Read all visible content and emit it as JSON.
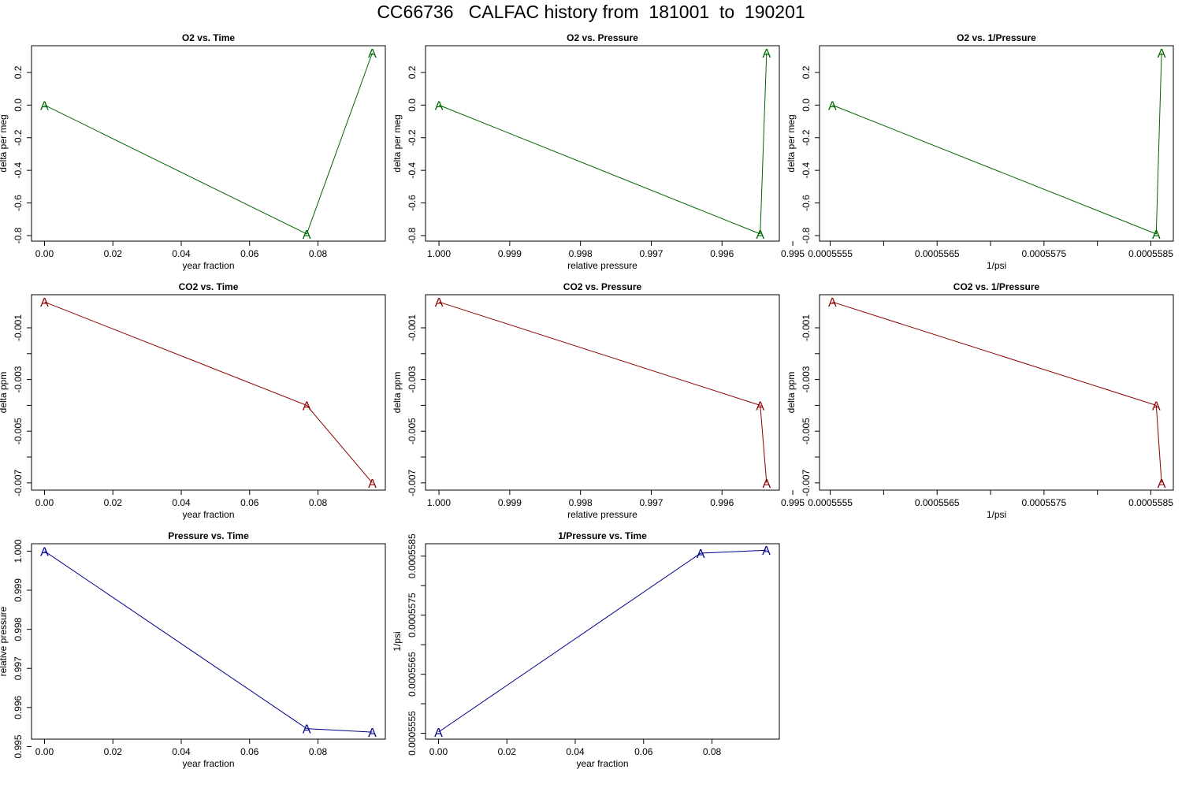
{
  "figure": {
    "title": "CC66736   CALFAC history from  181001  to  190201"
  },
  "colors": {
    "o2": "#006400",
    "co2": "#8b0000",
    "pressure": "#00008b",
    "axis": "#000000"
  },
  "chart_data": [
    {
      "type": "line",
      "title": "O2 vs. Time",
      "xlabel": "year fraction",
      "ylabel": "delta per meg",
      "color_key": "o2",
      "marker": "A",
      "x": [
        0.0,
        0.0767,
        0.0959
      ],
      "y": [
        0.0,
        -0.79,
        0.32
      ],
      "xlim": [
        -0.0038,
        0.0997
      ],
      "ylim": [
        -0.834,
        0.364
      ],
      "xticks": [
        0.0,
        0.02,
        0.04,
        0.06,
        0.08
      ],
      "xtick_labels": [
        "0.00",
        "0.02",
        "0.04",
        "0.06",
        "0.08"
      ],
      "yticks": [
        -0.8,
        -0.6,
        -0.4,
        -0.2,
        0.0,
        0.2
      ],
      "ytick_labels": [
        "-0.8",
        "-0.6",
        "-0.4",
        "-0.2",
        "0.0",
        "0.2"
      ]
    },
    {
      "type": "line",
      "title": "O2 vs. Pressure",
      "xlabel": "relative pressure",
      "ylabel": "delta per meg",
      "color_key": "o2",
      "marker": "A",
      "x": [
        1.0,
        0.99546,
        0.99537
      ],
      "y": [
        0.0,
        -0.79,
        0.32
      ],
      "xlim": [
        1.00019,
        0.99519
      ],
      "ylim": [
        -0.834,
        0.364
      ],
      "xticks": [
        1.0,
        0.999,
        0.998,
        0.997,
        0.996,
        0.995
      ],
      "xtick_labels": [
        "1.000",
        "0.999",
        "0.998",
        "0.997",
        "0.996",
        "0.995"
      ],
      "yticks": [
        -0.8,
        -0.6,
        -0.4,
        -0.2,
        0.0,
        0.2
      ],
      "ytick_labels": [
        "-0.8",
        "-0.6",
        "-0.4",
        "-0.2",
        "0.0",
        "0.2"
      ]
    },
    {
      "type": "line",
      "title": "O2 vs. 1/Pressure",
      "xlabel": "1/psi",
      "ylabel": "delta per meg",
      "color_key": "o2",
      "marker": "A",
      "x": [
        0.00055552,
        0.00055855,
        0.0005586
      ],
      "y": [
        0.0,
        -0.79,
        0.32
      ],
      "xlim": [
        0.0005554,
        0.00055871
      ],
      "ylim": [
        -0.834,
        0.364
      ],
      "xticks": [
        0.0005555,
        0.000556,
        0.0005565,
        0.000557,
        0.0005575,
        0.000558,
        0.0005585
      ],
      "xtick_labels": [
        "0.0005555",
        "",
        "0.0005565",
        "",
        "0.0005575",
        "",
        "0.0005585"
      ],
      "yticks": [
        -0.8,
        -0.6,
        -0.4,
        -0.2,
        0.0,
        0.2
      ],
      "ytick_labels": [
        "-0.8",
        "-0.6",
        "-0.4",
        "-0.2",
        "0.0",
        "0.2"
      ]
    },
    {
      "type": "line",
      "title": "CO2 vs. Time",
      "xlabel": "year fraction",
      "ylabel": "delta ppm",
      "color_key": "co2",
      "marker": "A",
      "x": [
        0.0,
        0.0767,
        0.0959
      ],
      "y": [
        0.0,
        -0.004,
        -0.007
      ],
      "xlim": [
        -0.0038,
        0.0997
      ],
      "ylim": [
        -0.00728,
        0.00028
      ],
      "xticks": [
        0.0,
        0.02,
        0.04,
        0.06,
        0.08
      ],
      "xtick_labels": [
        "0.00",
        "0.02",
        "0.04",
        "0.06",
        "0.08"
      ],
      "yticks": [
        -0.007,
        -0.006,
        -0.005,
        -0.004,
        -0.003,
        -0.002,
        -0.001
      ],
      "ytick_labels": [
        "-0.007",
        "",
        "-0.005",
        "",
        "-0.003",
        "",
        "-0.001"
      ]
    },
    {
      "type": "line",
      "title": "CO2 vs. Pressure",
      "xlabel": "relative pressure",
      "ylabel": "delta ppm",
      "color_key": "co2",
      "marker": "A",
      "x": [
        1.0,
        0.99546,
        0.99537
      ],
      "y": [
        0.0,
        -0.004,
        -0.007
      ],
      "xlim": [
        1.00019,
        0.99519
      ],
      "ylim": [
        -0.00728,
        0.00028
      ],
      "xticks": [
        1.0,
        0.999,
        0.998,
        0.997,
        0.996,
        0.995
      ],
      "xtick_labels": [
        "1.000",
        "0.999",
        "0.998",
        "0.997",
        "0.996",
        "0.995"
      ],
      "yticks": [
        -0.007,
        -0.006,
        -0.005,
        -0.004,
        -0.003,
        -0.002,
        -0.001
      ],
      "ytick_labels": [
        "-0.007",
        "",
        "-0.005",
        "",
        "-0.003",
        "",
        "-0.001"
      ]
    },
    {
      "type": "line",
      "title": "CO2 vs. 1/Pressure",
      "xlabel": "1/psi",
      "ylabel": "delta ppm",
      "color_key": "co2",
      "marker": "A",
      "x": [
        0.00055552,
        0.00055855,
        0.0005586
      ],
      "y": [
        0.0,
        -0.004,
        -0.007
      ],
      "xlim": [
        0.0005554,
        0.00055871
      ],
      "ylim": [
        -0.00728,
        0.00028
      ],
      "xticks": [
        0.0005555,
        0.000556,
        0.0005565,
        0.000557,
        0.0005575,
        0.000558,
        0.0005585
      ],
      "xtick_labels": [
        "0.0005555",
        "",
        "0.0005565",
        "",
        "0.0005575",
        "",
        "0.0005585"
      ],
      "yticks": [
        -0.007,
        -0.006,
        -0.005,
        -0.004,
        -0.003,
        -0.002,
        -0.001
      ],
      "ytick_labels": [
        "-0.007",
        "",
        "-0.005",
        "",
        "-0.003",
        "",
        "-0.001"
      ]
    },
    {
      "type": "line",
      "title": "Pressure vs. Time",
      "xlabel": "year fraction",
      "ylabel": "relative pressure",
      "color_key": "pressure",
      "marker": "A",
      "x": [
        0.0,
        0.0767,
        0.0959
      ],
      "y": [
        1.0,
        0.99546,
        0.99537
      ],
      "xlim": [
        -0.0038,
        0.0997
      ],
      "ylim": [
        0.99519,
        1.00019
      ],
      "xticks": [
        0.0,
        0.02,
        0.04,
        0.06,
        0.08
      ],
      "xtick_labels": [
        "0.00",
        "0.02",
        "0.04",
        "0.06",
        "0.08"
      ],
      "yticks": [
        0.995,
        0.996,
        0.997,
        0.998,
        0.999,
        1.0
      ],
      "ytick_labels": [
        "0.995",
        "0.996",
        "0.997",
        "0.998",
        "0.999",
        "1.000"
      ]
    },
    {
      "type": "line",
      "title": "1/Pressure vs. Time",
      "xlabel": "year fraction",
      "ylabel": "1/psi",
      "color_key": "pressure",
      "marker": "A",
      "x": [
        0.0,
        0.0767,
        0.0959
      ],
      "y": [
        0.00055552,
        0.00055855,
        0.0005586
      ],
      "xlim": [
        -0.0038,
        0.0997
      ],
      "ylim": [
        0.0005554,
        0.00055871
      ],
      "xticks": [
        0.0,
        0.02,
        0.04,
        0.06,
        0.08
      ],
      "xtick_labels": [
        "0.00",
        "0.02",
        "0.04",
        "0.06",
        "0.08"
      ],
      "yticks": [
        0.0005555,
        0.000556,
        0.0005565,
        0.000557,
        0.0005575,
        0.000558,
        0.0005585
      ],
      "ytick_labels": [
        "0.0005555",
        "",
        "0.0005565",
        "",
        "0.0005575",
        "",
        "0.0005585"
      ]
    }
  ]
}
